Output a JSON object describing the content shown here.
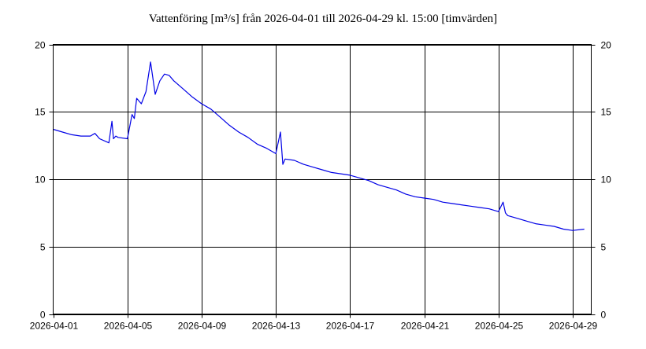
{
  "chart_data": {
    "type": "line",
    "title": "Vattenföring [m³/s] från 2026-04-01 till 2026-04-29 kl. 15:00 [timvärden]",
    "x_ticks": [
      "2026-04-01",
      "2026-04-05",
      "2026-04-09",
      "2026-04-13",
      "2026-04-17",
      "2026-04-21",
      "2026-04-25",
      "2026-04-29"
    ],
    "y_ticks": [
      "0",
      "5",
      "10",
      "15",
      "20"
    ],
    "xlim": [
      "2026-04-01 00:00",
      "2026-04-30 00:00"
    ],
    "ylim": [
      0,
      20
    ],
    "grid": true,
    "line_color": "#0000e6",
    "series": [
      {
        "x": [
          "2026-04-01 00:00",
          "2026-04-01 12:00",
          "2026-04-02 00:00",
          "2026-04-02 12:00",
          "2026-04-03 00:00",
          "2026-04-03 06:00",
          "2026-04-03 12:00",
          "2026-04-04 00:00",
          "2026-04-04 04:00",
          "2026-04-04 06:00",
          "2026-04-04 09:00",
          "2026-04-04 12:00",
          "2026-04-05 00:00",
          "2026-04-05 06:00",
          "2026-04-05 09:00",
          "2026-04-05 12:00",
          "2026-04-05 18:00",
          "2026-04-06 00:00",
          "2026-04-06 06:00",
          "2026-04-06 12:00",
          "2026-04-06 18:00",
          "2026-04-07 00:00",
          "2026-04-07 06:00",
          "2026-04-07 12:00",
          "2026-04-08 00:00",
          "2026-04-08 12:00",
          "2026-04-09 00:00",
          "2026-04-09 12:00",
          "2026-04-10 00:00",
          "2026-04-10 12:00",
          "2026-04-11 00:00",
          "2026-04-11 12:00",
          "2026-04-12 00:00",
          "2026-04-12 12:00",
          "2026-04-13 00:00",
          "2026-04-13 06:00",
          "2026-04-13 09:00",
          "2026-04-13 12:00",
          "2026-04-14 00:00",
          "2026-04-14 12:00",
          "2026-04-15 00:00",
          "2026-04-15 12:00",
          "2026-04-16 00:00",
          "2026-04-16 12:00",
          "2026-04-17 00:00",
          "2026-04-17 12:00",
          "2026-04-18 00:00",
          "2026-04-18 12:00",
          "2026-04-19 00:00",
          "2026-04-19 12:00",
          "2026-04-20 00:00",
          "2026-04-20 12:00",
          "2026-04-21 00:00",
          "2026-04-21 12:00",
          "2026-04-22 00:00",
          "2026-04-22 12:00",
          "2026-04-23 00:00",
          "2026-04-23 12:00",
          "2026-04-24 00:00",
          "2026-04-24 12:00",
          "2026-04-25 00:00",
          "2026-04-25 06:00",
          "2026-04-25 09:00",
          "2026-04-25 12:00",
          "2026-04-26 00:00",
          "2026-04-26 12:00",
          "2026-04-27 00:00",
          "2026-04-27 12:00",
          "2026-04-28 00:00",
          "2026-04-28 12:00",
          "2026-04-29 00:00",
          "2026-04-29 15:00"
        ],
        "y": [
          13.7,
          13.5,
          13.3,
          13.2,
          13.2,
          13.4,
          13.0,
          12.7,
          14.3,
          13.0,
          13.2,
          13.1,
          13.0,
          14.8,
          14.5,
          16.0,
          15.6,
          16.5,
          18.7,
          16.3,
          17.3,
          17.8,
          17.7,
          17.3,
          16.7,
          16.1,
          15.6,
          15.2,
          14.6,
          14.0,
          13.5,
          13.1,
          12.6,
          12.3,
          11.9,
          13.5,
          11.1,
          11.5,
          11.4,
          11.1,
          10.9,
          10.7,
          10.5,
          10.4,
          10.3,
          10.1,
          9.9,
          9.6,
          9.4,
          9.2,
          8.9,
          8.7,
          8.6,
          8.5,
          8.3,
          8.2,
          8.1,
          8.0,
          7.9,
          7.8,
          7.6,
          8.3,
          7.5,
          7.3,
          7.1,
          6.9,
          6.7,
          6.6,
          6.5,
          6.3,
          6.2,
          6.3
        ]
      }
    ]
  }
}
